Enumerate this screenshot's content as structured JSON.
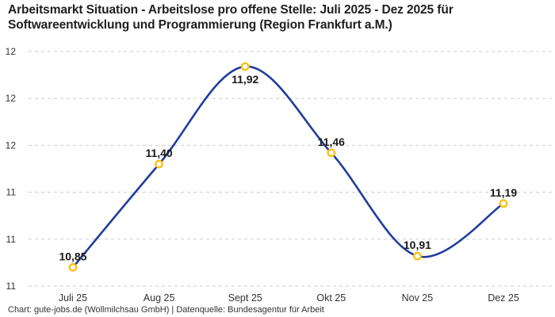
{
  "header": {
    "title_lines": [
      "Arbeitsmarkt Situation - Arbeitslose pro offene Stelle: Juli 2025 - Dez 2025 für",
      "Softwareentwicklung und Programmierung (Region Frankfurt a.M.)"
    ]
  },
  "footer": {
    "text": "Chart: gute-jobs.de (Wollmilchsau GmbH) | Datenquelle: Bundesagentur für Arbeit"
  },
  "chart_data": {
    "type": "line",
    "title": "Arbeitsmarkt Situation - Arbeitslose pro offene Stelle: Juli 2025 - Dez 2025 für Softwareentwicklung und Programmierung (Region Frankfurt a.M.)",
    "categories": [
      "Juli 25",
      "Aug 25",
      "Sept 25",
      "Okt 25",
      "Nov 25",
      "Dez 25"
    ],
    "values": [
      10.85,
      11.4,
      11.92,
      11.46,
      10.91,
      11.19
    ],
    "value_labels": [
      "10,85",
      "11,40",
      "11,92",
      "11,46",
      "10,91",
      "11,19"
    ],
    "xlabel": "",
    "ylabel": "",
    "ylim": [
      10.75,
      12.0
    ],
    "ytick_values": [
      12.0,
      11.75,
      11.5,
      11.25,
      11.0,
      10.75
    ],
    "ytick_labels": [
      "12",
      "12",
      "12",
      "11",
      "11",
      "11"
    ],
    "grid": "horizontal-dashed",
    "legend": "none",
    "line_style": "smooth-spline",
    "marker_style": "open-circle",
    "colors": {
      "line": "#1f3d9c",
      "marker_stroke": "#fcc018",
      "marker_fill": "#ffffff",
      "grid": "#cbcbcb",
      "title_text": "#1e1e1e",
      "value_label_text": "#1a1a1a",
      "axis_text": "#333333",
      "footer_text": "#333333"
    }
  }
}
